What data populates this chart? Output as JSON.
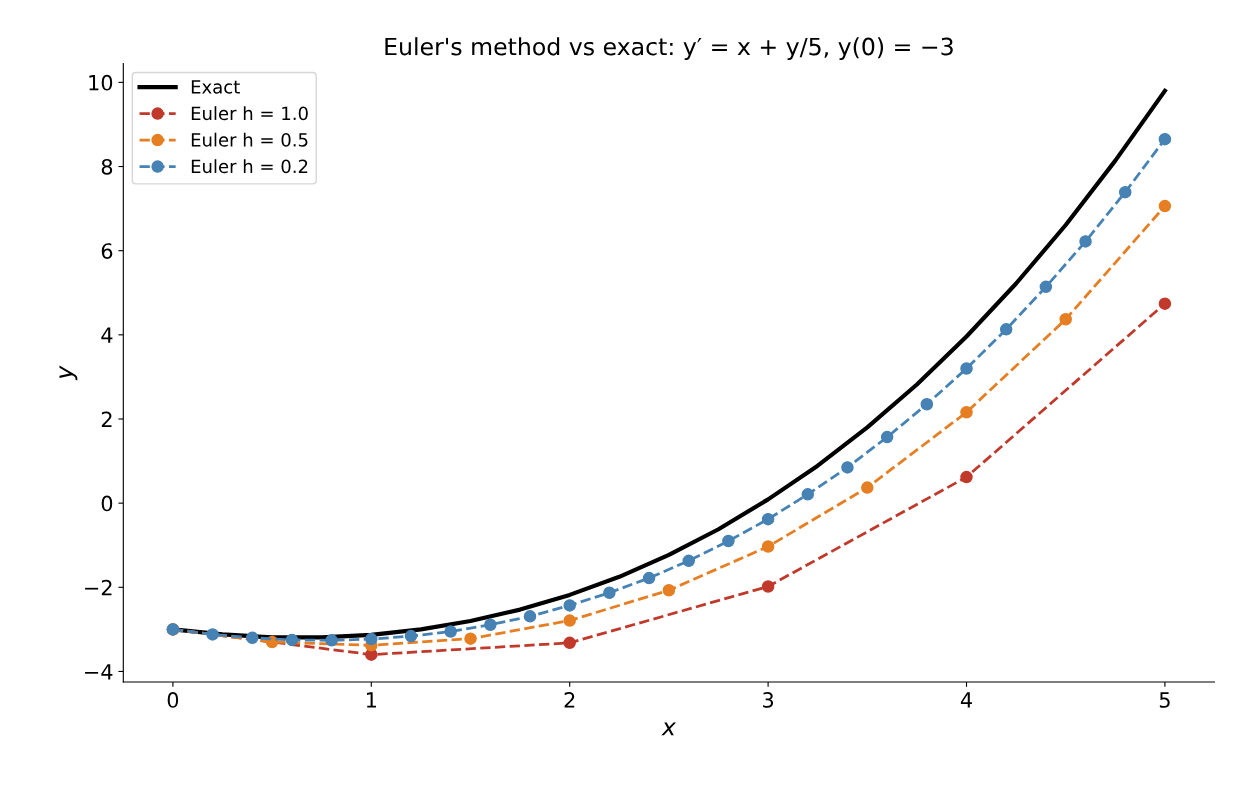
{
  "chart_data": {
    "type": "line",
    "title": "Euler's method vs exact: y′ = x + y/5, y(0) = −3",
    "xlabel": "x",
    "ylabel": "y",
    "xlim": [
      -0.25,
      5.25
    ],
    "ylim": [
      -4.25,
      10.45
    ],
    "xticks": [
      0,
      1,
      2,
      3,
      4,
      5
    ],
    "yticks": [
      {
        "value": -4,
        "label": "−4"
      },
      {
        "value": -2,
        "label": "−2"
      },
      0,
      2,
      4,
      6,
      8,
      10
    ],
    "grid": false,
    "legend": "top left",
    "series": [
      {
        "name": "Exact",
        "color": "#000000",
        "marker": "none",
        "line_style": "solid",
        "x": [
          0,
          0.25,
          0.5,
          0.75,
          1,
          1.25,
          1.5,
          1.75,
          2,
          2.25,
          2.5,
          2.75,
          3,
          3.25,
          3.5,
          3.75,
          4,
          4.25,
          4.5,
          4.75,
          5
        ],
        "values": [
          -3,
          -3.12,
          -3.19,
          -3.19,
          -3.13,
          -3.0,
          -2.8,
          -2.53,
          -2.18,
          -1.75,
          -1.23,
          -0.62,
          0.09,
          0.89,
          1.8,
          2.82,
          3.96,
          5.22,
          6.61,
          8.14,
          9.8
        ]
      },
      {
        "name": "Euler h = 1.0",
        "color": "#c0392b",
        "marker": "circle",
        "line_style": "dashed",
        "x": [
          0,
          1,
          2,
          3,
          4,
          5
        ],
        "values": [
          -3,
          -3.6,
          -3.32,
          -1.98,
          0.62,
          4.74
        ]
      },
      {
        "name": "Euler h = 0.5",
        "color": "#e67e22",
        "marker": "circle",
        "line_style": "dashed",
        "x": [
          0,
          0.5,
          1,
          1.5,
          2,
          2.5,
          3,
          3.5,
          4,
          4.5,
          5
        ],
        "values": [
          -3,
          -3.3,
          -3.38,
          -3.22,
          -2.79,
          -2.07,
          -1.03,
          0.37,
          2.16,
          4.37,
          7.06
        ]
      },
      {
        "name": "Euler h = 0.2",
        "color": "#4682b4",
        "marker": "circle",
        "line_style": "dashed",
        "x": [
          0,
          0.2,
          0.4,
          0.6,
          0.8,
          1,
          1.2,
          1.4,
          1.6,
          1.8,
          2,
          2.2,
          2.4,
          2.6,
          2.8,
          3,
          3.2,
          3.4,
          3.6,
          3.8,
          4,
          4.2,
          4.4,
          4.6,
          4.8,
          5
        ],
        "values": [
          -3,
          -3.12,
          -3.2,
          -3.25,
          -3.26,
          -3.23,
          -3.16,
          -3.05,
          -2.89,
          -2.69,
          -2.43,
          -2.13,
          -1.78,
          -1.37,
          -0.9,
          -0.38,
          0.21,
          0.85,
          1.57,
          2.35,
          3.2,
          4.13,
          5.14,
          6.22,
          7.39,
          8.65
        ]
      }
    ]
  }
}
